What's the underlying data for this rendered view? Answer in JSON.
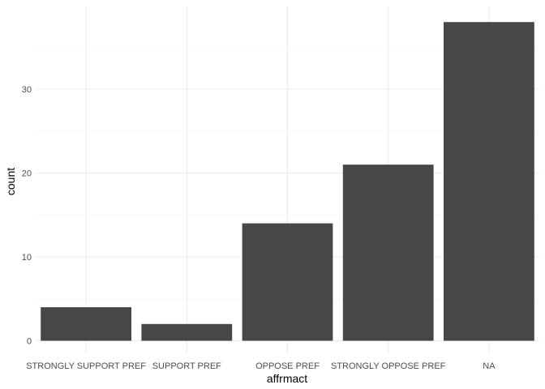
{
  "chart_data": {
    "type": "bar",
    "categories": [
      "STRONGLY SUPPORT PREF",
      "SUPPORT PREF",
      "OPPOSE PREF",
      "STRONGLY OPPOSE PREF",
      "NA"
    ],
    "values": [
      4,
      2,
      14,
      21,
      38
    ],
    "xlabel": "affrmact",
    "ylabel": "count",
    "yticks": [
      0,
      10,
      20,
      30
    ],
    "ylim": [
      0,
      39.9
    ],
    "grid": true,
    "legend": "none",
    "colors": {
      "bar": "#474747",
      "grid": "#ebebeb",
      "background": "#ffffff"
    }
  }
}
